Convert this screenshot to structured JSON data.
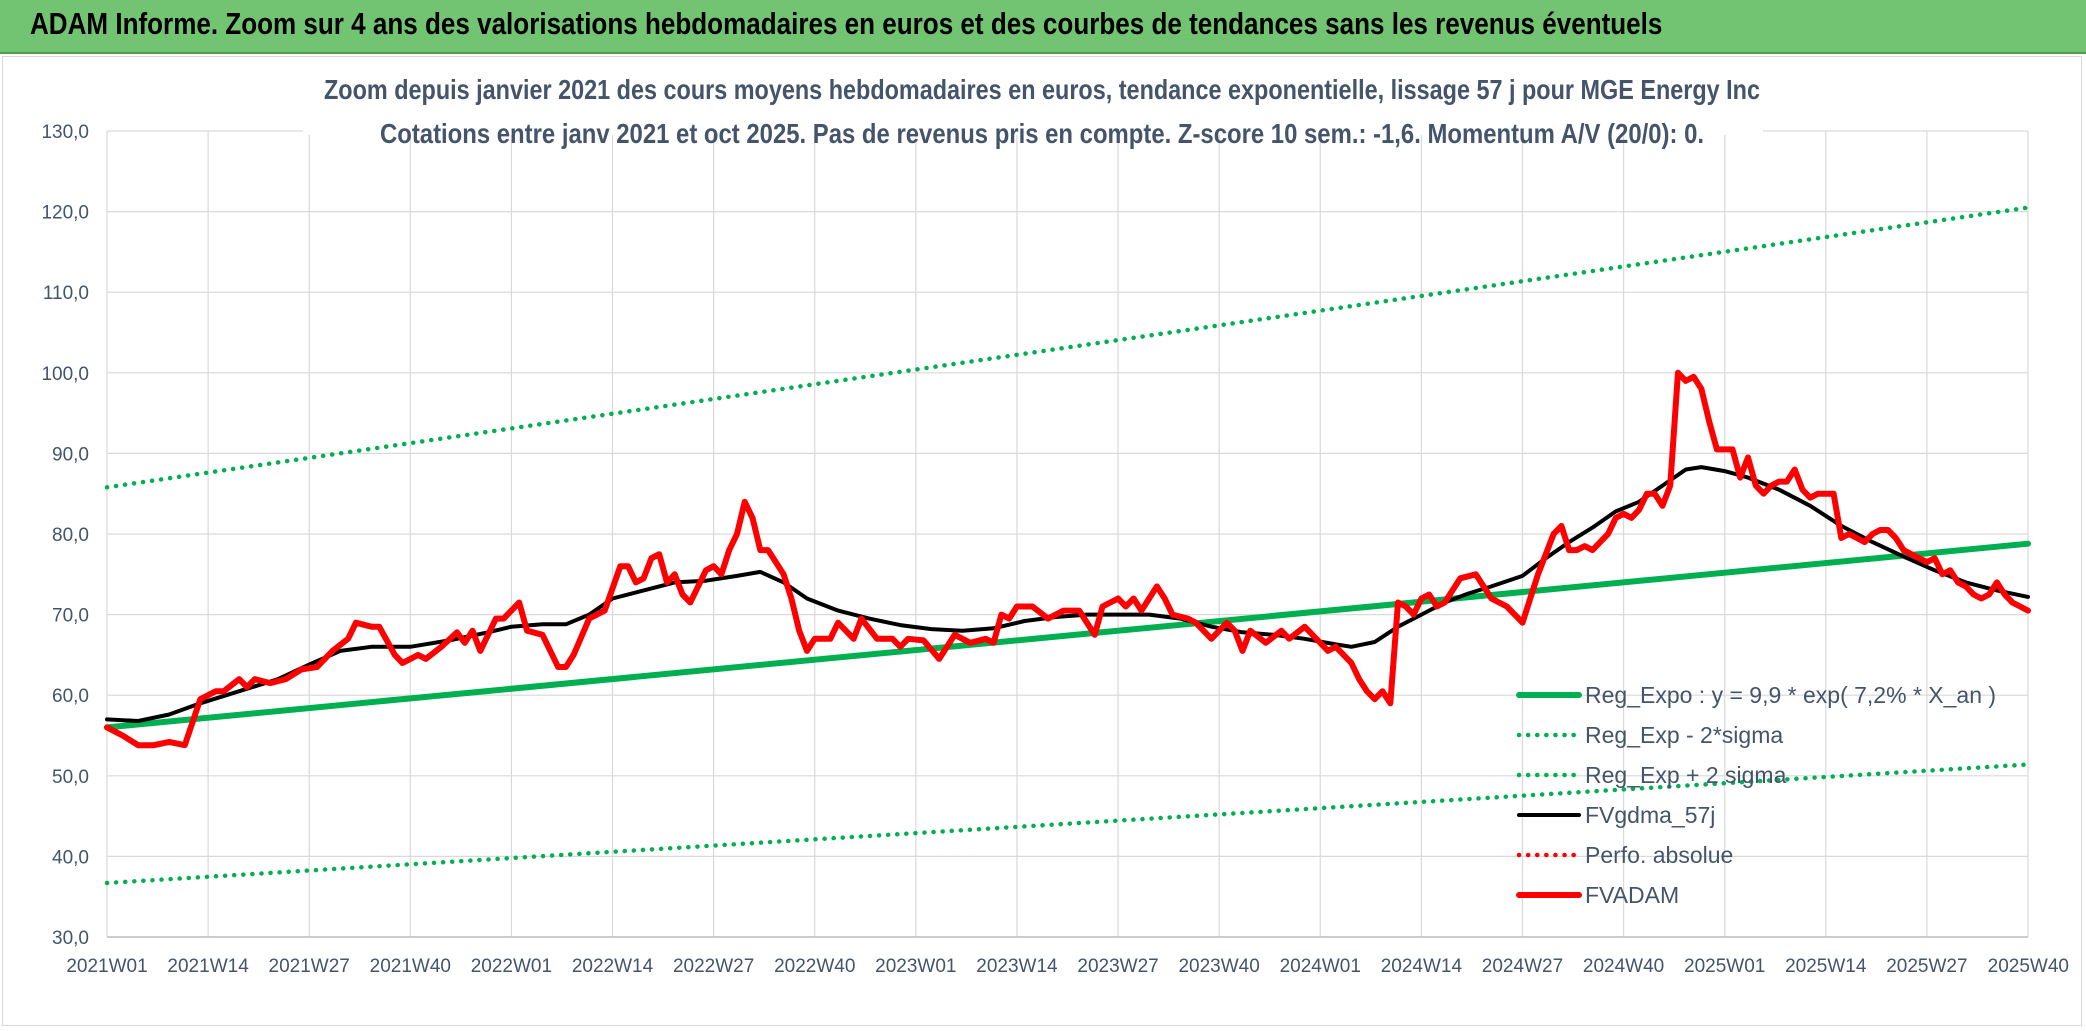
{
  "header": {
    "title": "ADAM Informe. Zoom sur 4 ans des valorisations hebdomadaires en euros et des courbes de tendances sans les revenus éventuels"
  },
  "colors": {
    "banner": "#72c472",
    "trend": "#00b050",
    "price": "#ff0000",
    "smooth": "#000000",
    "grid": "#d9d9d9",
    "text": "#44546a"
  },
  "chart_data": {
    "type": "line",
    "title": "Zoom depuis janvier 2021 des cours moyens hebdomadaires en euros, tendance exponentielle, lissage 57 j pour MGE Energy Inc",
    "subtitle": "Cotations entre janv 2021 et oct 2025. Pas de revenus pris en compte. Z-score 10 sem.: -1,6. Momentum A/V (20/0): 0.",
    "xlabel": "",
    "ylabel": "",
    "ylim": [
      30,
      130
    ],
    "ytick_values": [
      30,
      40,
      50,
      60,
      70,
      80,
      90,
      100,
      110,
      120,
      130
    ],
    "ytick_labels": [
      "30,0",
      "40,0",
      "50,0",
      "60,0",
      "70,0",
      "80,0",
      "90,0",
      "100,0",
      "110,0",
      "120,0",
      "130,0"
    ],
    "x_count": 248,
    "xticks": [
      {
        "i": 0,
        "label": "2021W01"
      },
      {
        "i": 13,
        "label": "2021W14"
      },
      {
        "i": 26,
        "label": "2021W27"
      },
      {
        "i": 39,
        "label": "2021W40"
      },
      {
        "i": 52,
        "label": "2022W01"
      },
      {
        "i": 65,
        "label": "2022W14"
      },
      {
        "i": 78,
        "label": "2022W27"
      },
      {
        "i": 91,
        "label": "2022W40"
      },
      {
        "i": 104,
        "label": "2023W01"
      },
      {
        "i": 117,
        "label": "2023W14"
      },
      {
        "i": 130,
        "label": "2023W27"
      },
      {
        "i": 143,
        "label": "2023W40"
      },
      {
        "i": 156,
        "label": "2024W01"
      },
      {
        "i": 169,
        "label": "2024W14"
      },
      {
        "i": 182,
        "label": "2024W27"
      },
      {
        "i": 195,
        "label": "2024W40"
      },
      {
        "i": 208,
        "label": "2025W01"
      },
      {
        "i": 221,
        "label": "2025W14"
      },
      {
        "i": 234,
        "label": "2025W27"
      },
      {
        "i": 247,
        "label": "2025W40"
      }
    ],
    "grid": true,
    "legend_position": "bottom-right",
    "series": [
      {
        "name": "Reg_Expo : y = 9,9 * exp( 7,2% *  X_an )",
        "style": "solid-thick",
        "color": "#00b050",
        "points": [
          [
            0,
            56.0
          ],
          [
            247,
            78.8
          ]
        ]
      },
      {
        "name": "Reg_Exp - 2*sigma",
        "style": "dotted",
        "color": "#00b050",
        "points": [
          [
            0,
            36.7
          ],
          [
            247,
            51.4
          ]
        ]
      },
      {
        "name": "Reg_Exp + 2 sigma",
        "style": "dotted",
        "color": "#00b050",
        "points": [
          [
            0,
            85.8
          ],
          [
            247,
            120.5
          ]
        ]
      },
      {
        "name": "FVgdma_57j",
        "style": "solid",
        "color": "#000000",
        "points": [
          [
            0,
            57.0
          ],
          [
            4,
            56.8
          ],
          [
            8,
            57.6
          ],
          [
            12,
            59.0
          ],
          [
            17,
            60.5
          ],
          [
            22,
            62.0
          ],
          [
            26,
            63.8
          ],
          [
            30,
            65.5
          ],
          [
            34,
            66.0
          ],
          [
            39,
            66.0
          ],
          [
            44,
            66.8
          ],
          [
            49,
            67.8
          ],
          [
            52,
            68.5
          ],
          [
            56,
            68.8
          ],
          [
            59,
            68.8
          ],
          [
            62,
            70.0
          ],
          [
            65,
            72.0
          ],
          [
            69,
            73.0
          ],
          [
            73,
            74.0
          ],
          [
            77,
            74.2
          ],
          [
            81,
            74.8
          ],
          [
            84,
            75.3
          ],
          [
            87,
            74.0
          ],
          [
            90,
            72.0
          ],
          [
            94,
            70.5
          ],
          [
            98,
            69.5
          ],
          [
            102,
            68.7
          ],
          [
            106,
            68.2
          ],
          [
            110,
            68.0
          ],
          [
            114,
            68.3
          ],
          [
            118,
            69.2
          ],
          [
            122,
            69.7
          ],
          [
            126,
            70.0
          ],
          [
            130,
            70.0
          ],
          [
            134,
            70.0
          ],
          [
            138,
            69.5
          ],
          [
            142,
            68.5
          ],
          [
            146,
            67.8
          ],
          [
            150,
            67.5
          ],
          [
            154,
            67.0
          ],
          [
            158,
            66.3
          ],
          [
            160,
            66.0
          ],
          [
            163,
            66.6
          ],
          [
            166,
            68.5
          ],
          [
            169,
            70.0
          ],
          [
            172,
            71.5
          ],
          [
            175,
            72.6
          ],
          [
            178,
            73.5
          ],
          [
            182,
            74.8
          ],
          [
            185,
            77.0
          ],
          [
            188,
            79.0
          ],
          [
            191,
            80.8
          ],
          [
            194,
            82.8
          ],
          [
            197,
            84.0
          ],
          [
            200,
            86.0
          ],
          [
            203,
            88.0
          ],
          [
            205,
            88.3
          ],
          [
            208,
            87.8
          ],
          [
            211,
            87.0
          ],
          [
            215,
            85.5
          ],
          [
            219,
            83.5
          ],
          [
            223,
            81.0
          ],
          [
            227,
            79.0
          ],
          [
            231,
            77.2
          ],
          [
            235,
            75.5
          ],
          [
            239,
            74.0
          ],
          [
            243,
            73.0
          ],
          [
            247,
            72.2
          ]
        ]
      },
      {
        "name": "Perfo. absolue",
        "style": "dotted",
        "color": "#ff0000",
        "points": []
      },
      {
        "name": "FVADAM",
        "style": "solid-thick",
        "color": "#ff0000",
        "points": [
          [
            0,
            56.0
          ],
          [
            2,
            55.0
          ],
          [
            4,
            53.8
          ],
          [
            6,
            53.8
          ],
          [
            8,
            54.2
          ],
          [
            10,
            53.8
          ],
          [
            12,
            59.5
          ],
          [
            14,
            60.5
          ],
          [
            15,
            60.5
          ],
          [
            17,
            62.0
          ],
          [
            18,
            61.0
          ],
          [
            19,
            62.0
          ],
          [
            21,
            61.5
          ],
          [
            23,
            62.0
          ],
          [
            25,
            63.2
          ],
          [
            27,
            63.5
          ],
          [
            29,
            65.5
          ],
          [
            31,
            67.0
          ],
          [
            32,
            69.0
          ],
          [
            34,
            68.5
          ],
          [
            35,
            68.5
          ],
          [
            37,
            65.0
          ],
          [
            38,
            64.0
          ],
          [
            40,
            65.0
          ],
          [
            41,
            64.5
          ],
          [
            43,
            66.0
          ],
          [
            45,
            67.8
          ],
          [
            46,
            66.5
          ],
          [
            47,
            68.0
          ],
          [
            48,
            65.5
          ],
          [
            50,
            69.5
          ],
          [
            51,
            69.5
          ],
          [
            53,
            71.5
          ],
          [
            54,
            68.0
          ],
          [
            56,
            67.5
          ],
          [
            58,
            63.5
          ],
          [
            59,
            63.5
          ],
          [
            60,
            65.0
          ],
          [
            62,
            69.5
          ],
          [
            64,
            70.5
          ],
          [
            66,
            76.0
          ],
          [
            67,
            76.0
          ],
          [
            68,
            74.0
          ],
          [
            69,
            74.5
          ],
          [
            70,
            77.0
          ],
          [
            71,
            77.5
          ],
          [
            72,
            74.0
          ],
          [
            73,
            75.0
          ],
          [
            74,
            72.5
          ],
          [
            75,
            71.5
          ],
          [
            77,
            75.5
          ],
          [
            78,
            76.0
          ],
          [
            79,
            75.0
          ],
          [
            80,
            78.0
          ],
          [
            81,
            80.0
          ],
          [
            82,
            84.0
          ],
          [
            83,
            82.0
          ],
          [
            84,
            78.0
          ],
          [
            85,
            78.0
          ],
          [
            86,
            76.5
          ],
          [
            87,
            75.0
          ],
          [
            88,
            72.0
          ],
          [
            89,
            68.0
          ],
          [
            90,
            65.5
          ],
          [
            91,
            67.0
          ],
          [
            93,
            67.0
          ],
          [
            94,
            69.0
          ],
          [
            95,
            68.0
          ],
          [
            96,
            67.0
          ],
          [
            97,
            69.5
          ],
          [
            99,
            67.0
          ],
          [
            101,
            67.0
          ],
          [
            102,
            66.0
          ],
          [
            103,
            67.0
          ],
          [
            105,
            66.8
          ],
          [
            107,
            64.5
          ],
          [
            109,
            67.5
          ],
          [
            111,
            66.5
          ],
          [
            113,
            67.0
          ],
          [
            114,
            66.5
          ],
          [
            115,
            70.0
          ],
          [
            116,
            69.5
          ],
          [
            117,
            71.0
          ],
          [
            119,
            71.0
          ],
          [
            121,
            69.5
          ],
          [
            123,
            70.5
          ],
          [
            125,
            70.5
          ],
          [
            127,
            67.5
          ],
          [
            128,
            71.0
          ],
          [
            130,
            72.0
          ],
          [
            131,
            71.0
          ],
          [
            132,
            72.0
          ],
          [
            133,
            70.5
          ],
          [
            135,
            73.5
          ],
          [
            136,
            72.0
          ],
          [
            137,
            70.0
          ],
          [
            139,
            69.5
          ],
          [
            140,
            69.0
          ],
          [
            142,
            67.0
          ],
          [
            144,
            69.0
          ],
          [
            145,
            68.0
          ],
          [
            146,
            65.5
          ],
          [
            147,
            68.0
          ],
          [
            149,
            66.5
          ],
          [
            151,
            68.0
          ],
          [
            152,
            67.0
          ],
          [
            154,
            68.5
          ],
          [
            155,
            67.5
          ],
          [
            157,
            65.5
          ],
          [
            158,
            66.0
          ],
          [
            160,
            64.0
          ],
          [
            161,
            62.0
          ],
          [
            162,
            60.5
          ],
          [
            163,
            59.5
          ],
          [
            164,
            60.5
          ],
          [
            165,
            59.0
          ],
          [
            166,
            71.5
          ],
          [
            167,
            71.0
          ],
          [
            168,
            70.0
          ],
          [
            169,
            72.0
          ],
          [
            170,
            72.5
          ],
          [
            171,
            71.0
          ],
          [
            172,
            71.5
          ],
          [
            173,
            73.0
          ],
          [
            174,
            74.5
          ],
          [
            176,
            75.0
          ],
          [
            177,
            73.5
          ],
          [
            178,
            72.0
          ],
          [
            179,
            71.5
          ],
          [
            180,
            71.0
          ],
          [
            182,
            69.0
          ],
          [
            184,
            75.0
          ],
          [
            185,
            77.5
          ],
          [
            186,
            80.0
          ],
          [
            187,
            81.0
          ],
          [
            188,
            78.0
          ],
          [
            189,
            78.0
          ],
          [
            190,
            78.5
          ],
          [
            191,
            78.0
          ],
          [
            192,
            79.0
          ],
          [
            193,
            80.0
          ],
          [
            194,
            82.0
          ],
          [
            195,
            82.5
          ],
          [
            196,
            82.0
          ],
          [
            197,
            83.0
          ],
          [
            198,
            85.0
          ],
          [
            199,
            85.0
          ],
          [
            200,
            83.5
          ],
          [
            201,
            86.0
          ],
          [
            202,
            100.0
          ],
          [
            203,
            99.0
          ],
          [
            204,
            99.5
          ],
          [
            205,
            98.0
          ],
          [
            206,
            94.0
          ],
          [
            207,
            90.5
          ],
          [
            208,
            90.5
          ],
          [
            209,
            90.5
          ],
          [
            210,
            87.0
          ],
          [
            211,
            89.5
          ],
          [
            212,
            86.0
          ],
          [
            213,
            85.0
          ],
          [
            214,
            86.0
          ],
          [
            215,
            86.5
          ],
          [
            216,
            86.5
          ],
          [
            217,
            88.0
          ],
          [
            218,
            85.5
          ],
          [
            219,
            84.5
          ],
          [
            220,
            85.0
          ],
          [
            221,
            85.0
          ],
          [
            222,
            85.0
          ],
          [
            223,
            79.5
          ],
          [
            224,
            80.0
          ],
          [
            225,
            79.5
          ],
          [
            226,
            79.0
          ],
          [
            227,
            80.0
          ],
          [
            228,
            80.5
          ],
          [
            229,
            80.5
          ],
          [
            230,
            79.5
          ],
          [
            231,
            78.0
          ],
          [
            232,
            77.5
          ],
          [
            233,
            77.0
          ],
          [
            234,
            76.5
          ],
          [
            235,
            77.0
          ],
          [
            236,
            75.0
          ],
          [
            237,
            75.5
          ],
          [
            238,
            74.0
          ],
          [
            239,
            73.5
          ],
          [
            240,
            72.5
          ],
          [
            241,
            72.0
          ],
          [
            242,
            72.5
          ],
          [
            243,
            74.0
          ],
          [
            244,
            72.5
          ],
          [
            245,
            71.5
          ],
          [
            246,
            71.0
          ],
          [
            247,
            70.5
          ]
        ]
      }
    ]
  }
}
